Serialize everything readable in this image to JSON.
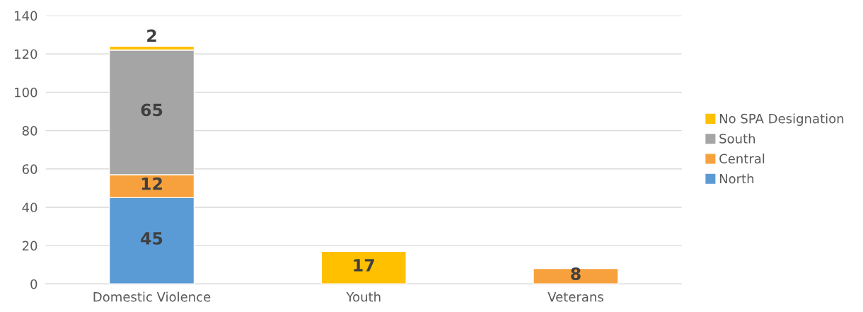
{
  "chart_data": {
    "type": "bar",
    "stacked": true,
    "categories": [
      "Domestic Violence",
      "Youth",
      "Veterans"
    ],
    "series": [
      {
        "name": "North",
        "color": "#5b9bd5",
        "values": [
          45,
          null,
          null
        ]
      },
      {
        "name": "Central",
        "color": "#f7a13e",
        "values": [
          12,
          null,
          8
        ]
      },
      {
        "name": "South",
        "color": "#a5a5a5",
        "values": [
          65,
          null,
          null
        ]
      },
      {
        "name": "No SPA Designation",
        "color": "#ffc000",
        "values": [
          2,
          17,
          null
        ]
      }
    ],
    "ylim": [
      0,
      140
    ],
    "yticks": [
      0,
      20,
      40,
      60,
      80,
      100,
      120,
      140
    ],
    "grid": "y",
    "legend": "right",
    "data_labels": true
  }
}
